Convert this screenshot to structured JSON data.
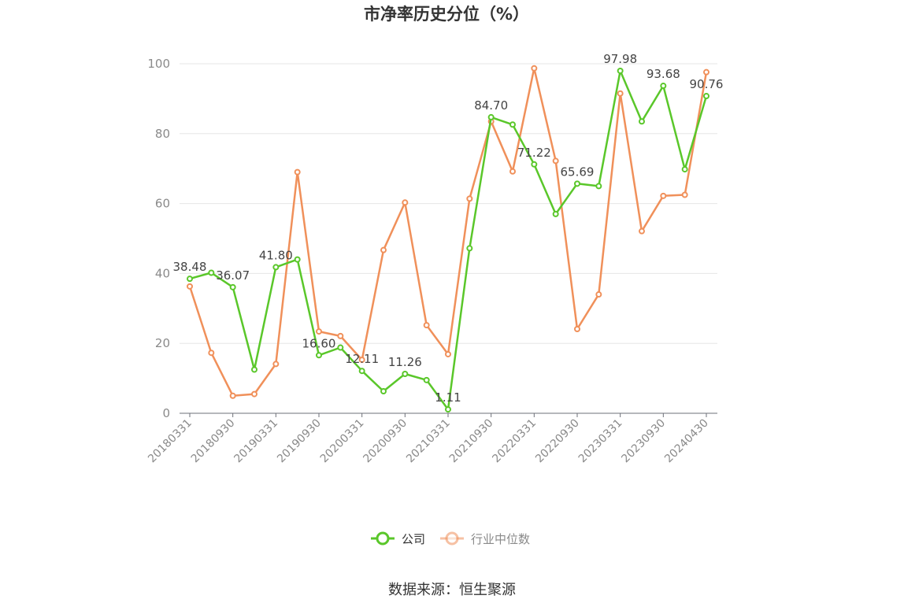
{
  "chart_data": {
    "type": "line",
    "title": "市净率历史分位（%）",
    "source": "数据来源：恒生聚源",
    "ylim": [
      0,
      100
    ],
    "yticks": [
      0,
      20,
      40,
      60,
      80,
      100
    ],
    "grid": true,
    "legend_position": "bottom",
    "x": [
      "20180331",
      "20180630",
      "20180930",
      "20181231",
      "20190331",
      "20190630",
      "20190930",
      "20191231",
      "20200331",
      "20200630",
      "20200930",
      "20201231",
      "20210331",
      "20210630",
      "20210930",
      "20211231",
      "20220331",
      "20220630",
      "20220930",
      "20221231",
      "20230331",
      "20230630",
      "20230930",
      "20231231",
      "20240430"
    ],
    "xtick_labels": [
      "20180331",
      "20180930",
      "20190331",
      "20190930",
      "20200331",
      "20200930",
      "20210331",
      "20210930",
      "20220331",
      "20220930",
      "20230331",
      "20230930",
      "20240430"
    ],
    "series": [
      {
        "name": "公司",
        "color": "#5ac72a",
        "values": [
          38.48,
          40.2,
          36.07,
          12.5,
          41.8,
          44.0,
          16.6,
          18.8,
          12.11,
          6.3,
          11.26,
          9.5,
          1.11,
          47.2,
          84.7,
          82.6,
          71.22,
          57.0,
          65.69,
          65.0,
          97.98,
          83.5,
          93.68,
          69.8,
          90.76
        ],
        "labels": {
          "0": "38.48",
          "2": "36.07",
          "4": "41.80",
          "6": "16.60",
          "8": "12.11",
          "10": "11.26",
          "12": "1.11",
          "14": "84.70",
          "16": "71.22",
          "18": "65.69",
          "20": "97.98",
          "22": "93.68",
          "24": "90.76"
        }
      },
      {
        "name": "行业中位数",
        "color": "#f0905a",
        "values": [
          36.3,
          17.3,
          5.0,
          5.5,
          14.1,
          69.0,
          23.4,
          22.1,
          15.3,
          46.7,
          60.3,
          25.2,
          16.9,
          61.4,
          83.5,
          69.2,
          98.7,
          72.2,
          24.1,
          34.0,
          91.5,
          52.1,
          62.2,
          62.5,
          97.6
        ]
      }
    ]
  }
}
